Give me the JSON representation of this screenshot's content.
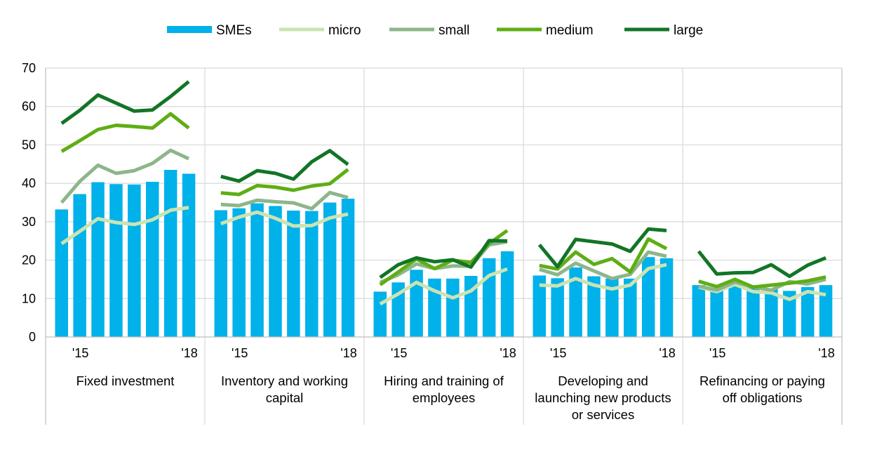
{
  "chart_data": {
    "type": "bar",
    "title": "",
    "xlabel": "",
    "ylabel": "",
    "ylim": [
      0,
      70
    ],
    "yticks": [
      0,
      10,
      20,
      30,
      40,
      50,
      60,
      70
    ],
    "grid": true,
    "legend_position": "top-center",
    "period_tick_labels": [
      "'15",
      "'18"
    ],
    "groups": [
      {
        "label_lines": [
          "Fixed investment"
        ]
      },
      {
        "label_lines": [
          "Inventory and working",
          "capital"
        ]
      },
      {
        "label_lines": [
          "Hiring and training of",
          "employees"
        ]
      },
      {
        "label_lines": [
          "Developing and",
          "launching new products",
          "or services"
        ]
      },
      {
        "label_lines": [
          "Refinancing or paying",
          "off obligations"
        ]
      }
    ],
    "series": [
      {
        "name": "SMEs",
        "kind": "bar",
        "color": "#00B1EA",
        "values": [
          [
            33.2,
            37.2,
            40.3,
            39.8,
            39.7,
            40.4,
            43.5,
            42.5
          ],
          [
            33.0,
            33.5,
            34.8,
            34.1,
            32.9,
            32.8,
            35.0,
            36.0
          ],
          [
            11.8,
            14.2,
            17.5,
            15.2,
            15.2,
            15.9,
            20.5,
            22.3
          ],
          [
            16.0,
            15.3,
            18.1,
            15.8,
            15.2,
            15.2,
            20.8,
            20.5
          ],
          [
            13.5,
            12.5,
            13.5,
            13.0,
            12.5,
            12.0,
            13.0,
            13.5
          ]
        ]
      },
      {
        "name": "micro",
        "kind": "line",
        "color": "#CBE3B3",
        "values": [
          [
            24.3,
            27.5,
            30.8,
            29.8,
            29.3,
            30.5,
            33.0,
            33.7
          ],
          [
            29.5,
            31.2,
            32.5,
            30.9,
            28.9,
            29.0,
            31.0,
            32.0
          ],
          [
            8.6,
            11.2,
            14.2,
            12.0,
            10.2,
            12.0,
            16.0,
            17.7
          ],
          [
            13.5,
            13.3,
            15.2,
            13.5,
            12.5,
            13.5,
            17.8,
            18.8
          ],
          [
            13.0,
            11.8,
            13.7,
            11.8,
            11.5,
            9.8,
            11.8,
            11.0
          ]
        ]
      },
      {
        "name": "small",
        "kind": "line",
        "color": "#8DB68A",
        "values": [
          [
            35.0,
            40.5,
            44.7,
            42.6,
            43.3,
            45.2,
            48.6,
            46.4
          ],
          [
            34.5,
            34.2,
            35.6,
            35.2,
            34.9,
            33.4,
            37.6,
            36.3
          ],
          [
            14.2,
            16.2,
            19.0,
            17.8,
            18.5,
            18.4,
            24.0,
            24.8
          ],
          [
            17.6,
            16.2,
            19.2,
            17.2,
            15.2,
            16.3,
            22.1,
            21.0
          ],
          [
            13.2,
            12.2,
            14.3,
            13.0,
            12.2,
            14.4,
            13.8,
            15.0
          ]
        ]
      },
      {
        "name": "medium",
        "kind": "line",
        "color": "#5EAE14",
        "values": [
          [
            48.3,
            51.1,
            54.0,
            55.1,
            54.8,
            54.4,
            58.1,
            54.4
          ],
          [
            37.5,
            37.1,
            39.4,
            39.0,
            38.2,
            39.3,
            39.9,
            43.6
          ],
          [
            13.6,
            16.9,
            20.3,
            17.8,
            20.0,
            19.4,
            24.3,
            27.7
          ],
          [
            18.6,
            17.7,
            22.1,
            18.9,
            20.4,
            16.9,
            25.5,
            23.0
          ],
          [
            14.5,
            13.1,
            15.0,
            13.0,
            13.5,
            14.0,
            14.6,
            15.6
          ]
        ]
      },
      {
        "name": "large",
        "kind": "line",
        "color": "#127527",
        "values": [
          [
            55.6,
            59.0,
            63.0,
            60.9,
            58.8,
            59.1,
            62.6,
            66.5
          ],
          [
            41.8,
            40.6,
            43.3,
            42.6,
            41.1,
            45.6,
            48.5,
            44.9
          ],
          [
            15.5,
            18.8,
            20.6,
            19.6,
            20.1,
            18.2,
            25.1,
            25.0
          ],
          [
            24.0,
            18.3,
            25.4,
            24.8,
            24.2,
            22.3,
            28.1,
            27.7
          ],
          [
            22.3,
            16.4,
            16.7,
            16.8,
            18.8,
            15.8,
            18.7,
            20.6
          ]
        ]
      }
    ]
  }
}
